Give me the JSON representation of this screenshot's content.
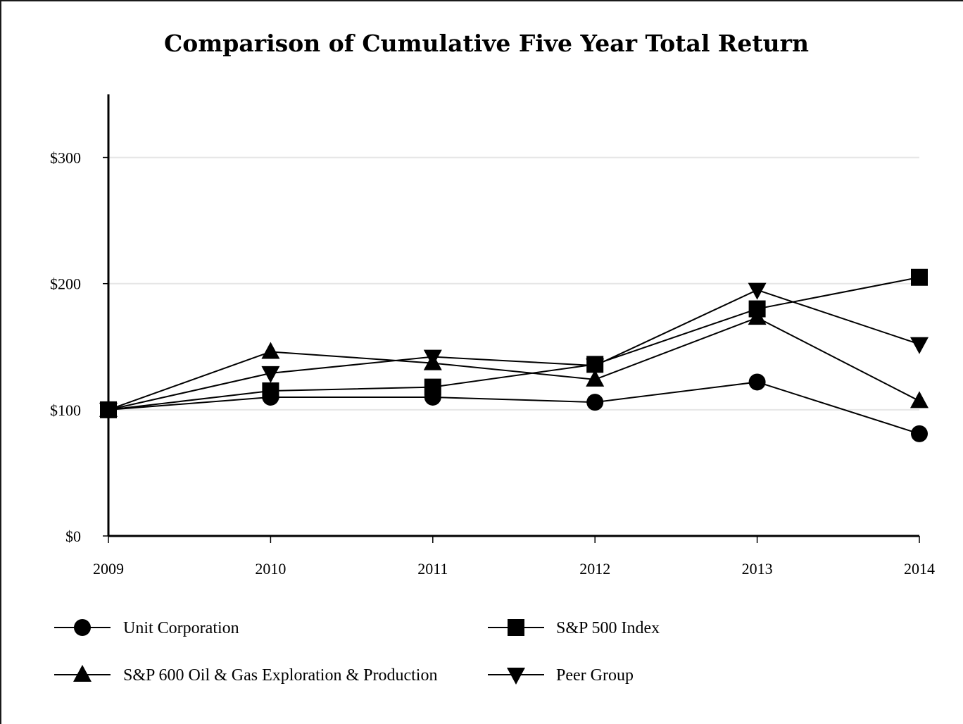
{
  "chart_data": {
    "type": "line",
    "title": "Comparison of Cumulative Five Year Total Return",
    "xlabel": "",
    "ylabel": "",
    "x": [
      "2009",
      "2010",
      "2011",
      "2012",
      "2013",
      "2014"
    ],
    "ylim": [
      0,
      350
    ],
    "yticks": [
      0,
      100,
      200,
      300
    ],
    "ytick_labels": [
      "$0",
      "$100",
      "$200",
      "$300"
    ],
    "grid": true,
    "legend_position": "bottom",
    "series": [
      {
        "name": "Unit Corporation",
        "marker": "circle",
        "values": [
          100,
          110,
          110,
          106,
          122,
          81
        ]
      },
      {
        "name": "S&P 500 Index",
        "marker": "square",
        "values": [
          100,
          115,
          118,
          136,
          180,
          205
        ]
      },
      {
        "name": "S&P 600 Oil & Gas Exploration & Production",
        "marker": "triangle-up",
        "values": [
          100,
          146,
          137,
          124,
          173,
          107
        ]
      },
      {
        "name": "Peer Group",
        "marker": "triangle-down",
        "values": [
          100,
          129,
          142,
          135,
          195,
          152
        ]
      }
    ],
    "colors": {
      "line": "#000000",
      "grid": "#e6e6e6",
      "axis": "#000000"
    }
  }
}
